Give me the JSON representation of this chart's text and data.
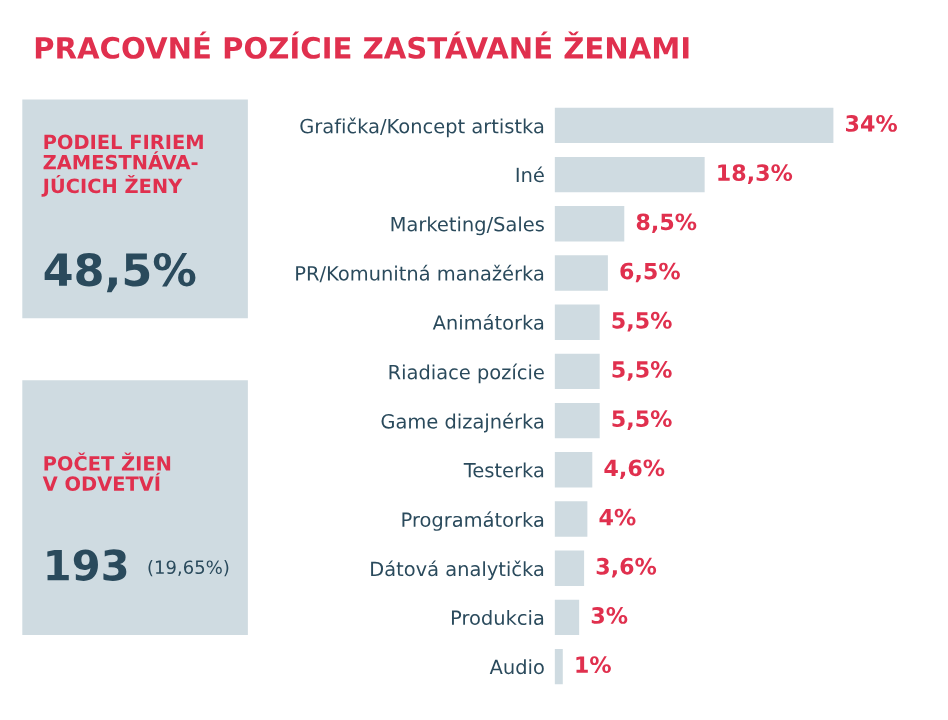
{
  "chart_data": {
    "type": "bar",
    "orientation": "horizontal",
    "title": "PRACOVNÉ POZÍCIE ZASTÁVANÉ ŽENAMI",
    "categories": [
      "Grafička/Koncept artistka",
      "Iné",
      "Marketing/Sales",
      "PR/Komunitná manažérka",
      "Animátorka",
      "Riadiace pozície",
      "Game dizajnérka",
      "Testerka",
      "Programátorka",
      "Dátová analytička",
      "Produkcia",
      "Audio"
    ],
    "values": [
      34,
      18.3,
      8.5,
      6.5,
      5.5,
      5.5,
      5.5,
      4.6,
      4,
      3.6,
      3,
      1
    ],
    "value_labels": [
      "34%",
      "18,3%",
      "8,5%",
      "6,5%",
      "5,5%",
      "5,5%",
      "5,5%",
      "4,6%",
      "4%",
      "3,6%",
      "3%",
      "1%"
    ],
    "color": "#cfdbe1",
    "tick_labels": "y",
    "grid": false,
    "legend": false,
    "annotations": [
      "PODIEL FIRIEM\nZAMESTNÁVA-\nJÚCICH ŽENY",
      "48,5%",
      "POČET ŽIEN\nV ODVETVÍ",
      "193",
      "(19,65%)"
    ]
  }
}
